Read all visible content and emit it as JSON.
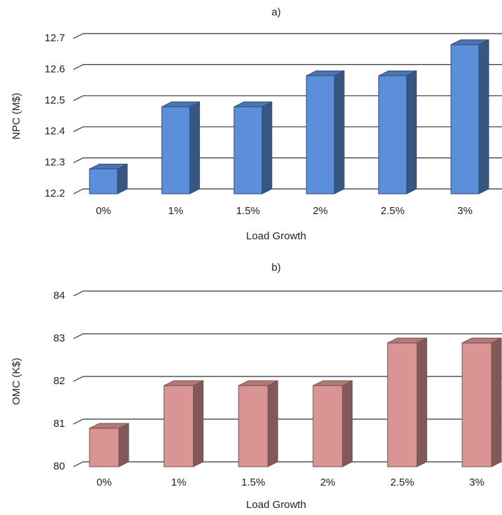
{
  "chart_data": [
    {
      "type": "bar",
      "title": "a)",
      "xlabel": "Load Growth",
      "ylabel": "NPC (M$)",
      "categories": [
        "0%",
        "1%",
        "1.5%",
        "2%",
        "2.5%",
        "3%"
      ],
      "values": [
        12.28,
        12.48,
        12.48,
        12.58,
        12.58,
        12.68
      ],
      "color": "#5b8fd9",
      "ylim": [
        12.2,
        12.7
      ],
      "yticks": [
        12.2,
        12.3,
        12.4,
        12.5,
        12.6,
        12.7
      ],
      "grid": true
    },
    {
      "type": "bar",
      "title": "b)",
      "xlabel": "Load Growth",
      "ylabel": "OMC (K$)",
      "categories": [
        "0%",
        "1%",
        "1.5%",
        "2%",
        "2.5%",
        "3%"
      ],
      "values": [
        80.9,
        81.9,
        81.9,
        81.9,
        82.9,
        82.9
      ],
      "color": "#d99594",
      "ylim": [
        80,
        84
      ],
      "yticks": [
        80,
        81,
        82,
        83,
        84
      ],
      "grid": true
    }
  ]
}
